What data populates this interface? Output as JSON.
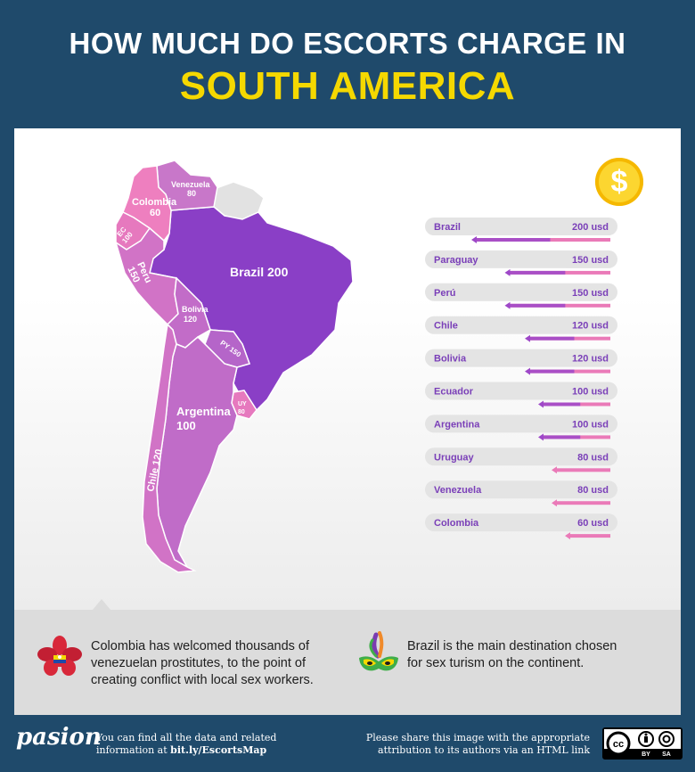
{
  "title": {
    "line1": "HOW MUCH DO ESCORTS CHARGE IN",
    "line2": "SOUTH AMERICA"
  },
  "coin_symbol": "$",
  "chart_data": {
    "type": "bar",
    "orientation": "horizontal",
    "unit": "usd",
    "categories": [
      "Brazil",
      "Paraguay",
      "Perú",
      "Chile",
      "Bolivia",
      "Ecuador",
      "Argentina",
      "Uruguay",
      "Venezuela",
      "Colombia"
    ],
    "value_labels": [
      "200 usd",
      "150 usd",
      "150 usd",
      "120 usd",
      "120 usd",
      "100 usd",
      "100 usd",
      "80 usd",
      "80 usd",
      "60 usd"
    ],
    "values": [
      200,
      150,
      150,
      120,
      120,
      100,
      100,
      80,
      80,
      60
    ],
    "max": 200
  },
  "map": {
    "brazil": "Brazil 200",
    "colombia_name": "Colombia",
    "colombia_value": "60",
    "venezuela_name": "Venezuela",
    "venezuela_value": "80",
    "ecuador_name": "EC",
    "ecuador_value": "100",
    "peru_name": "Peru",
    "peru_value": "150",
    "bolivia_name": "Bolivia",
    "bolivia_value": "120",
    "paraguay": "PY 150",
    "uruguay_name": "UY",
    "uruguay_value": "80",
    "argentina_name": "Argentina",
    "argentina_value": "100",
    "chile": "Chile 120"
  },
  "notes": {
    "colombia": "Colombia has welcomed thousands of venezuelan prostitutes, to the point of creating conflict with local sex workers.",
    "brazil": "Brazil is the main destination chosen for sex turism on the continent."
  },
  "footer": {
    "logo": "pasion",
    "left_line1": "You can find all the data and related",
    "left_line2_prefix": "information at ",
    "left_link": "bit.ly/EscortsMap",
    "right_line1": "Please share this image with the appropriate",
    "right_line2": "attribution to its authors via an HTML link",
    "cc_by": "BY",
    "cc_sa": "SA"
  },
  "colors": {
    "background": "#1f4a6b",
    "title_yellow": "#f5d800",
    "brazil": "#8a3fc6",
    "colombia": "#ee7fbf",
    "pink": "#ea7ab8",
    "purple": "#9e48c8",
    "argentina": "#c06cc8",
    "unpriced": "#e2e2e2"
  }
}
